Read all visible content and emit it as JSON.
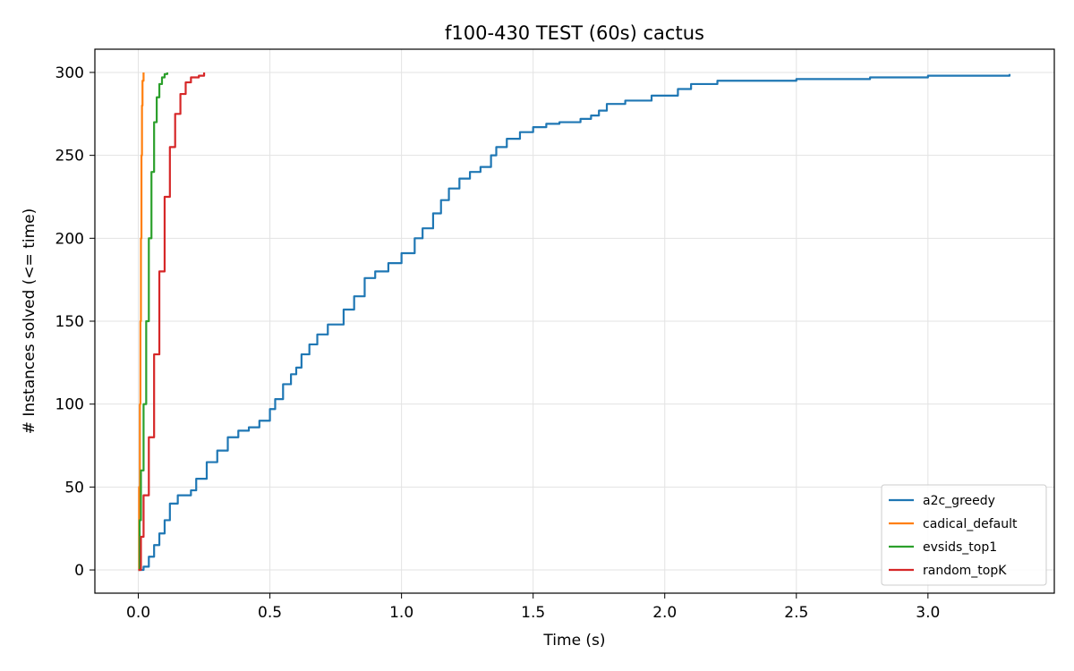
{
  "chart_data": {
    "type": "line",
    "title": "f100-430 TEST (60s) cactus",
    "xlabel": "Time (s)",
    "ylabel": "# Instances solved (<= time)",
    "xlim": [
      -0.165,
      3.48
    ],
    "ylim": [
      -14,
      314
    ],
    "xticks": [
      0.0,
      0.5,
      1.0,
      1.5,
      2.0,
      2.5,
      3.0
    ],
    "xtick_labels": [
      "0.0",
      "0.5",
      "1.0",
      "1.5",
      "2.0",
      "2.5",
      "3.0"
    ],
    "yticks": [
      0,
      50,
      100,
      150,
      200,
      250,
      300
    ],
    "ytick_labels": [
      "0",
      "50",
      "100",
      "150",
      "200",
      "250",
      "300"
    ],
    "grid": true,
    "legend_position": "bottom-right",
    "series": [
      {
        "name": "a2c_greedy",
        "color": "#1f77b4",
        "points": [
          [
            0.0,
            0
          ],
          [
            0.02,
            2
          ],
          [
            0.04,
            8
          ],
          [
            0.06,
            15
          ],
          [
            0.08,
            22
          ],
          [
            0.1,
            30
          ],
          [
            0.12,
            40
          ],
          [
            0.15,
            45
          ],
          [
            0.2,
            48
          ],
          [
            0.22,
            55
          ],
          [
            0.26,
            65
          ],
          [
            0.3,
            72
          ],
          [
            0.34,
            80
          ],
          [
            0.38,
            84
          ],
          [
            0.42,
            86
          ],
          [
            0.46,
            90
          ],
          [
            0.5,
            97
          ],
          [
            0.52,
            103
          ],
          [
            0.55,
            112
          ],
          [
            0.58,
            118
          ],
          [
            0.6,
            122
          ],
          [
            0.62,
            130
          ],
          [
            0.65,
            136
          ],
          [
            0.68,
            142
          ],
          [
            0.72,
            148
          ],
          [
            0.78,
            157
          ],
          [
            0.82,
            165
          ],
          [
            0.86,
            176
          ],
          [
            0.9,
            180
          ],
          [
            0.95,
            185
          ],
          [
            1.0,
            191
          ],
          [
            1.05,
            200
          ],
          [
            1.08,
            206
          ],
          [
            1.12,
            215
          ],
          [
            1.15,
            223
          ],
          [
            1.18,
            230
          ],
          [
            1.22,
            236
          ],
          [
            1.26,
            240
          ],
          [
            1.3,
            243
          ],
          [
            1.34,
            250
          ],
          [
            1.36,
            255
          ],
          [
            1.4,
            260
          ],
          [
            1.45,
            264
          ],
          [
            1.5,
            267
          ],
          [
            1.55,
            269
          ],
          [
            1.6,
            270
          ],
          [
            1.68,
            272
          ],
          [
            1.72,
            274
          ],
          [
            1.75,
            277
          ],
          [
            1.78,
            281
          ],
          [
            1.85,
            283
          ],
          [
            1.95,
            286
          ],
          [
            2.05,
            290
          ],
          [
            2.1,
            293
          ],
          [
            2.2,
            295
          ],
          [
            2.5,
            296
          ],
          [
            2.78,
            297
          ],
          [
            3.0,
            298
          ],
          [
            3.31,
            299
          ]
        ]
      },
      {
        "name": "cadical_default",
        "color": "#ff7f0e",
        "points": [
          [
            0.0,
            0
          ],
          [
            0.003,
            50
          ],
          [
            0.006,
            100
          ],
          [
            0.008,
            150
          ],
          [
            0.01,
            200
          ],
          [
            0.012,
            250
          ],
          [
            0.014,
            280
          ],
          [
            0.016,
            295
          ],
          [
            0.02,
            300
          ]
        ]
      },
      {
        "name": "evsids_top1",
        "color": "#2ca02c",
        "points": [
          [
            0.0,
            0
          ],
          [
            0.005,
            30
          ],
          [
            0.01,
            60
          ],
          [
            0.02,
            100
          ],
          [
            0.03,
            150
          ],
          [
            0.04,
            200
          ],
          [
            0.05,
            240
          ],
          [
            0.06,
            270
          ],
          [
            0.07,
            285
          ],
          [
            0.08,
            293
          ],
          [
            0.09,
            297
          ],
          [
            0.1,
            299
          ],
          [
            0.11,
            300
          ]
        ]
      },
      {
        "name": "random_topK",
        "color": "#d62728",
        "points": [
          [
            0.0,
            0
          ],
          [
            0.01,
            20
          ],
          [
            0.02,
            45
          ],
          [
            0.04,
            80
          ],
          [
            0.06,
            130
          ],
          [
            0.08,
            180
          ],
          [
            0.1,
            225
          ],
          [
            0.12,
            255
          ],
          [
            0.14,
            275
          ],
          [
            0.16,
            287
          ],
          [
            0.18,
            294
          ],
          [
            0.2,
            297
          ],
          [
            0.23,
            298
          ],
          [
            0.25,
            300
          ]
        ]
      }
    ]
  }
}
